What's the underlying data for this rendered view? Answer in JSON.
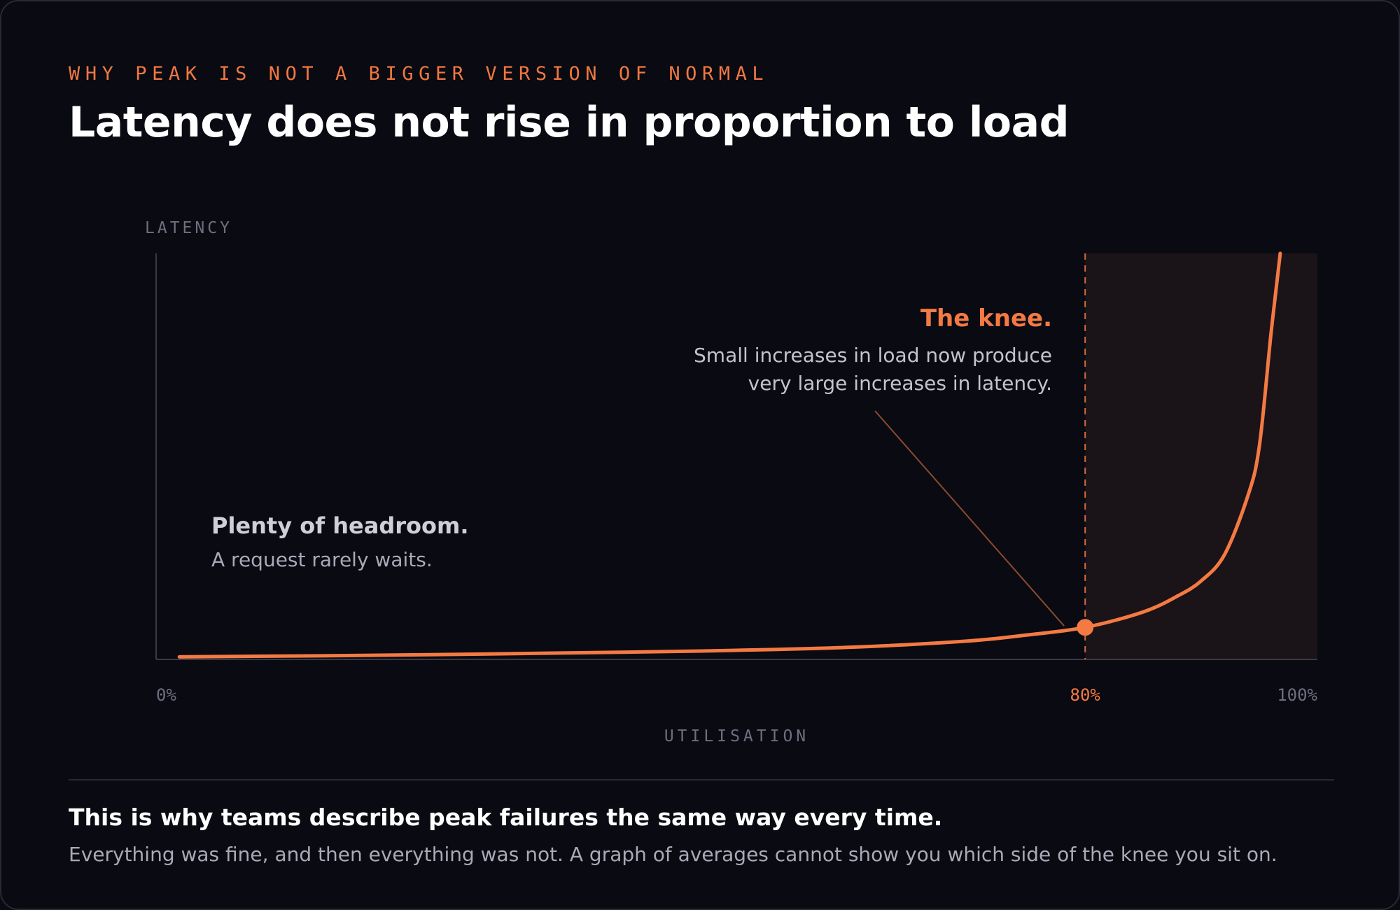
{
  "header": {
    "eyebrow": "WHY PEAK IS NOT A BIGGER VERSION OF NORMAL",
    "title": "Latency does not rise in proportion to load"
  },
  "chart_data": {
    "type": "line",
    "ylabel": "LATENCY",
    "xlabel": "UTILISATION",
    "x_unit": "% utilisation",
    "xlim": [
      0,
      100
    ],
    "x_ticks": [
      {
        "value": 0,
        "label": "0%"
      },
      {
        "value": 80,
        "label": "80%"
      },
      {
        "value": 100,
        "label": "100%"
      }
    ],
    "y_ticks_shown": false,
    "grid": false,
    "series": [
      {
        "x": [
          2,
          20,
          40,
          50,
          60,
          70,
          75,
          80,
          85,
          88,
          90,
          92,
          94,
          95,
          96,
          96.8
        ],
        "y": [
          0.9,
          2.3,
          4.6,
          6.2,
          8.7,
          13.7,
          18.5,
          24.6,
          37,
          50,
          62,
          83,
          130,
          170,
          260,
          325
        ]
      }
    ],
    "knee": {
      "x": 80,
      "highlight_from": 80,
      "highlight_to": 100
    },
    "annotations": {
      "knee_title": "The knee.",
      "knee_line1": "Small increases in load now produce",
      "knee_line2": "very large increases in latency.",
      "headroom_title": "Plenty of headroom.",
      "headroom_text": "A request rarely waits."
    },
    "colors": {
      "curve": "#f47a43",
      "zone": "#1a1317",
      "axis": "#3a3a48",
      "tick": "#6e6e80",
      "accent_tick": "#f47a43"
    }
  },
  "footer": {
    "title": "This is why teams describe peak failures the same way every time.",
    "body": "Everything was fine, and then everything was not. A graph of averages cannot show you which side of the knee you sit on."
  }
}
